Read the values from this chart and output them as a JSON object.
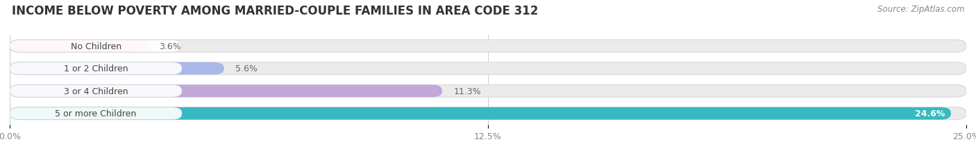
{
  "title": "INCOME BELOW POVERTY AMONG MARRIED-COUPLE FAMILIES IN AREA CODE 312",
  "source": "Source: ZipAtlas.com",
  "categories": [
    "No Children",
    "1 or 2 Children",
    "3 or 4 Children",
    "5 or more Children"
  ],
  "values": [
    3.6,
    5.6,
    11.3,
    24.6
  ],
  "bar_colors": [
    "#f2a0a8",
    "#a8b8e8",
    "#c0a8d8",
    "#38b8c0"
  ],
  "xlim": [
    0,
    25.0
  ],
  "xticks": [
    0.0,
    12.5,
    25.0
  ],
  "xtick_labels": [
    "0.0%",
    "12.5%",
    "25.0%"
  ],
  "background_color": "#ffffff",
  "bar_bg_color": "#ebebeb",
  "bar_bg_border": "#d8d8d8",
  "title_fontsize": 12,
  "source_fontsize": 8.5,
  "label_fontsize": 9,
  "value_fontsize": 9,
  "tick_fontsize": 9,
  "bar_height": 0.55,
  "n_bars": 4
}
